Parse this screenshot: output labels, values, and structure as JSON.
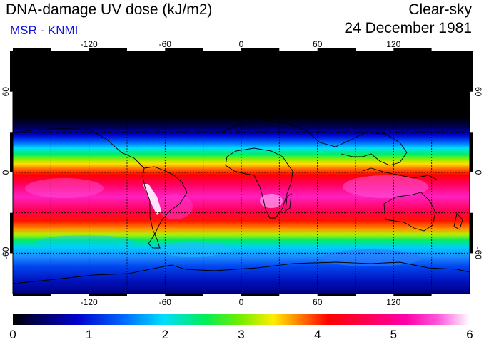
{
  "header": {
    "title": "DNA-damage UV dose (kJ/m2)",
    "credit": "MSR - KNMI",
    "sky_condition": "Clear-sky",
    "date": "24 December 1981"
  },
  "map": {
    "projection": "equirectangular",
    "lon_ticks": [
      "-120",
      "-60",
      "0",
      "60",
      "120"
    ],
    "lat_ticks": [
      "60",
      "0",
      "-60"
    ],
    "lon_range": [
      -180,
      180
    ],
    "lat_range": [
      -90,
      90
    ],
    "gridlines": "dotted every 30 degrees"
  },
  "colorbar": {
    "labels": [
      "0",
      "1",
      "2",
      "3",
      "4",
      "5",
      "6"
    ],
    "min": 0,
    "max": 6,
    "colors": [
      "#000000",
      "#0000cc",
      "#0066ff",
      "#00ddff",
      "#00ee55",
      "#77ee00",
      "#ffee00",
      "#ff7700",
      "#ff0000",
      "#ff0055",
      "#ff00aa",
      "#ff55dd",
      "#ffffff"
    ]
  },
  "colors": {
    "text": "#000000",
    "credit": "#1010e0",
    "background": "#ffffff"
  }
}
